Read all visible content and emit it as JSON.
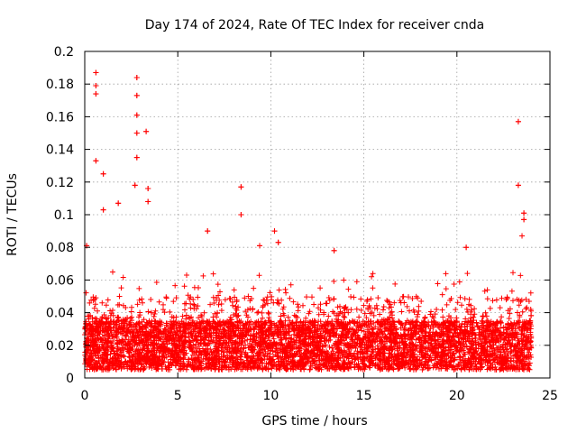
{
  "chart_data": {
    "type": "scatter",
    "title": "Day 174 of 2024, Rate Of TEC Index for receiver cnda",
    "xlabel": "GPS time / hours",
    "ylabel": "ROTI / TECUs",
    "xlim": [
      0,
      25
    ],
    "ylim": [
      0,
      0.2
    ],
    "xticks": [
      "0",
      "5",
      "10",
      "15",
      "20",
      "25"
    ],
    "yticks": [
      "0",
      "0.02",
      "0.04",
      "0.06",
      "0.08",
      "0.1",
      "0.12",
      "0.14",
      "0.16",
      "0.18",
      "0.2"
    ],
    "grid": true,
    "marker": "+",
    "series_color": "#ff0000",
    "time_span_hours": [
      0,
      24
    ],
    "baseline_band": [
      0.005,
      0.035
    ],
    "typical_max": 0.065,
    "notable_points": [
      {
        "x": 0.6,
        "y": 0.187
      },
      {
        "x": 0.6,
        "y": 0.179
      },
      {
        "x": 0.6,
        "y": 0.174
      },
      {
        "x": 0.6,
        "y": 0.133
      },
      {
        "x": 1.0,
        "y": 0.125
      },
      {
        "x": 1.0,
        "y": 0.103
      },
      {
        "x": 1.8,
        "y": 0.107
      },
      {
        "x": 2.8,
        "y": 0.184
      },
      {
        "x": 2.8,
        "y": 0.173
      },
      {
        "x": 2.8,
        "y": 0.161
      },
      {
        "x": 2.8,
        "y": 0.15
      },
      {
        "x": 2.8,
        "y": 0.135
      },
      {
        "x": 2.7,
        "y": 0.118
      },
      {
        "x": 3.3,
        "y": 0.151
      },
      {
        "x": 3.4,
        "y": 0.116
      },
      {
        "x": 3.4,
        "y": 0.108
      },
      {
        "x": 8.4,
        "y": 0.117
      },
      {
        "x": 8.4,
        "y": 0.1
      },
      {
        "x": 6.6,
        "y": 0.09
      },
      {
        "x": 10.2,
        "y": 0.09
      },
      {
        "x": 10.4,
        "y": 0.083
      },
      {
        "x": 9.4,
        "y": 0.081
      },
      {
        "x": 13.4,
        "y": 0.078
      },
      {
        "x": 20.5,
        "y": 0.08
      },
      {
        "x": 23.3,
        "y": 0.157
      },
      {
        "x": 23.3,
        "y": 0.118
      },
      {
        "x": 23.6,
        "y": 0.101
      },
      {
        "x": 23.6,
        "y": 0.097
      },
      {
        "x": 23.5,
        "y": 0.087
      },
      {
        "x": 0.1,
        "y": 0.081
      }
    ]
  }
}
